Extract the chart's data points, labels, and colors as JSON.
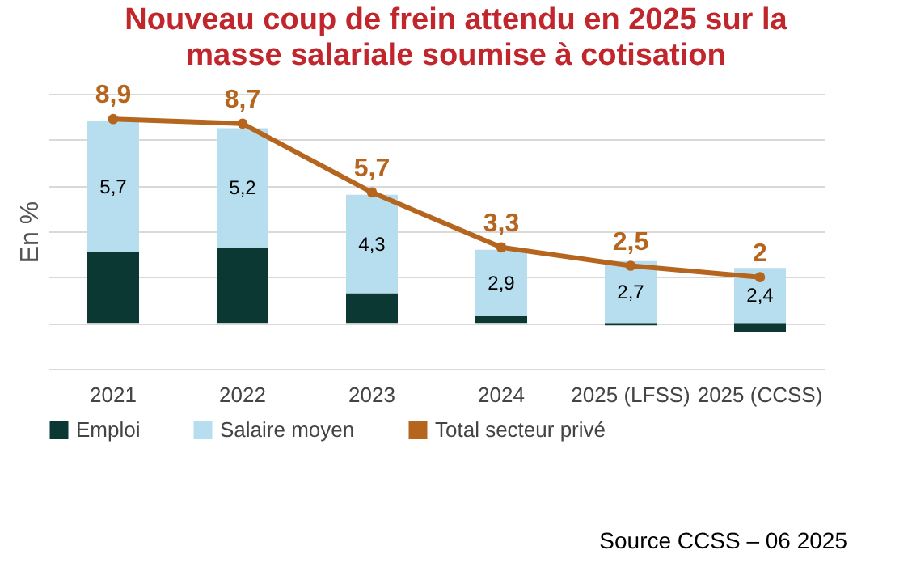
{
  "chart_data": {
    "type": "bar",
    "title": "Nouveau coup de frein attendu en 2025 sur la masse salariale soumise à cotisation",
    "ylabel": "En %",
    "categories": [
      "2021",
      "2022",
      "2023",
      "2024",
      "2025 (LFSS)",
      "2025 (CCSS)"
    ],
    "series": [
      {
        "name": "Emploi",
        "color": "#0b3833",
        "values": [
          3.1,
          3.3,
          1.3,
          0.3,
          -0.1,
          -0.4
        ]
      },
      {
        "name": "Salaire moyen",
        "color": "#b7deee",
        "values": [
          5.7,
          5.2,
          4.3,
          2.9,
          2.7,
          2.4
        ],
        "value_labels": [
          "5,7",
          "5,2",
          "4,3",
          "2,9",
          "2,7",
          "2,4"
        ]
      },
      {
        "name": "Total secteur privé",
        "type": "line",
        "color": "#b5651d",
        "values": [
          8.9,
          8.7,
          5.7,
          3.3,
          2.5,
          2
        ],
        "value_labels": [
          "8,9",
          "8,7",
          "5,7",
          "3,3",
          "2,5",
          "2"
        ]
      }
    ],
    "stacked": true,
    "ylim": [
      -2,
      10
    ],
    "yticks": [
      -2,
      0,
      2,
      4,
      6,
      8,
      10
    ],
    "tick_labels": "x",
    "grid": "y",
    "legend": "bottom",
    "marker": "circle",
    "annotations": [
      "Source CCSS – 06 2025"
    ]
  }
}
